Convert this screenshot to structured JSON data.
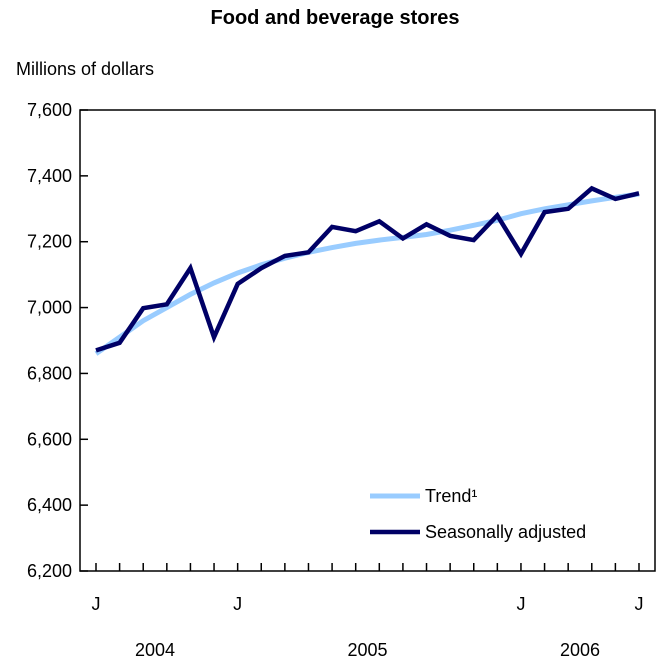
{
  "chart_data": {
    "type": "line",
    "title": "Food and beverage stores",
    "ylabel": "Millions of dollars",
    "xlabel": "",
    "ylim": [
      6200,
      7600
    ],
    "yticks": [
      6200,
      6400,
      6600,
      6800,
      7000,
      7200,
      7400,
      7600
    ],
    "ytick_labels": [
      "6,200",
      "6,400",
      "6,600",
      "6,800",
      "7,000",
      "7,200",
      "7,400",
      "7,600"
    ],
    "month_labels": [
      {
        "index": 0,
        "label": "J"
      },
      {
        "index": 6,
        "label": "J"
      },
      {
        "index": 18,
        "label": "J"
      },
      {
        "index": 23,
        "label": "J"
      }
    ],
    "year_labels": [
      {
        "center_index": 2.5,
        "label": "2004"
      },
      {
        "center_index": 11.5,
        "label": "2005"
      },
      {
        "center_index": 20.5,
        "label": "2006"
      }
    ],
    "x_count": 24,
    "grid": false,
    "legend_position": "bottom-right",
    "series": [
      {
        "name": "Trend¹",
        "color": "#99ccff",
        "values": [
          6860,
          6910,
          6960,
          7000,
          7040,
          7075,
          7105,
          7130,
          7150,
          7168,
          7182,
          7195,
          7205,
          7213,
          7222,
          7235,
          7250,
          7265,
          7285,
          7300,
          7312,
          7324,
          7335,
          7345
        ]
      },
      {
        "name": "Seasonally adjusted",
        "color": "#000066",
        "values": [
          6870,
          6893,
          6998,
          7010,
          7120,
          6910,
          7072,
          7120,
          7157,
          7168,
          7245,
          7232,
          7262,
          7210,
          7253,
          7218,
          7205,
          7280,
          7163,
          7290,
          7300,
          7362,
          7330,
          7347
        ]
      }
    ]
  }
}
